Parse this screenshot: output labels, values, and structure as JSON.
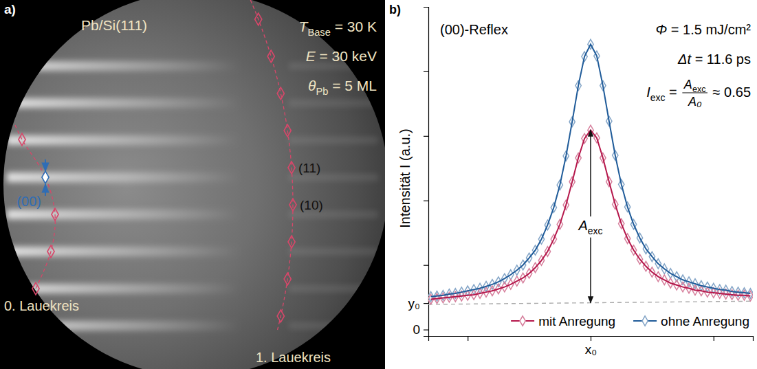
{
  "panel_a": {
    "letter": "a)",
    "title": "Pb/Si(111)",
    "parameters": [
      {
        "symbol": "T",
        "sub": "Base",
        "text": " = 30 K"
      },
      {
        "symbol": "E",
        "text": " = 30 keV"
      },
      {
        "symbol": "θ",
        "sub": "Pb",
        "text": " = 5 ML"
      }
    ],
    "reflexes": [
      "(00)",
      "(11)",
      "(10)"
    ],
    "laue_circles": [
      "0. Lauekreis",
      "1. Lauekreis"
    ]
  },
  "chart_data": {
    "type": "line",
    "letter": "b)",
    "title": "(00)-Reflex",
    "ylabel": "Intensität I (a.u.)",
    "x": [
      -1.3,
      -1.25,
      -1.2,
      -1.15,
      -1.1,
      -1.05,
      -1,
      -0.95,
      -0.9,
      -0.85,
      -0.8,
      -0.75,
      -0.7,
      -0.65,
      -0.6,
      -0.55,
      -0.5,
      -0.45,
      -0.4,
      -0.35,
      -0.3,
      -0.25,
      -0.2,
      -0.15,
      -0.1,
      -0.05,
      0,
      0.05,
      0.1,
      0.15,
      0.2,
      0.25,
      0.3,
      0.35,
      0.4,
      0.45,
      0.5,
      0.55,
      0.6,
      0.65,
      0.7,
      0.75,
      0.8,
      0.85,
      0.9,
      0.95,
      1,
      1.05,
      1.1,
      1.15,
      1.2,
      1.25,
      1.3
    ],
    "xlim": [
      -1.32,
      1.32
    ],
    "xticks": [
      {
        "value": -1,
        "label": null
      },
      {
        "value": 0,
        "label": "x₀"
      },
      {
        "value": 1,
        "label": null
      }
    ],
    "ylim": [
      -0.1,
      5
    ],
    "yticks": [
      0,
      {
        "value": 0.41,
        "label": "y₀"
      },
      {
        "value": 1,
        "label": null
      },
      {
        "value": 2,
        "label": null
      },
      {
        "value": 3,
        "label": null
      },
      {
        "value": 4,
        "label": null
      }
    ],
    "legend": "lower right",
    "series": [
      {
        "name": "mit Anregung",
        "color": "#b5174b",
        "marker": "diamond",
        "line_style": "solid",
        "values": [
          0.47,
          0.48,
          0.49,
          0.5,
          0.51,
          0.52,
          0.53,
          0.54,
          0.56,
          0.58,
          0.6,
          0.63,
          0.66,
          0.7,
          0.75,
          0.8,
          0.87,
          0.96,
          1.07,
          1.21,
          1.4,
          1.63,
          1.93,
          2.29,
          2.66,
          2.96,
          3.09,
          2.97,
          2.66,
          2.29,
          1.94,
          1.64,
          1.41,
          1.23,
          1.09,
          0.98,
          0.89,
          0.82,
          0.77,
          0.72,
          0.69,
          0.66,
          0.64,
          0.61,
          0.6,
          0.58,
          0.57,
          0.56,
          0.55,
          0.54,
          0.53,
          0.53,
          0.52
        ]
      },
      {
        "name": "ohne Anregung",
        "color": "#1f5b99",
        "marker": "diamond",
        "line_style": "solid",
        "values": [
          0.51,
          0.52,
          0.53,
          0.55,
          0.56,
          0.58,
          0.6,
          0.62,
          0.64,
          0.67,
          0.7,
          0.74,
          0.79,
          0.85,
          0.92,
          1.0,
          1.11,
          1.23,
          1.4,
          1.62,
          1.89,
          2.24,
          2.69,
          3.22,
          3.78,
          4.23,
          4.42,
          4.24,
          3.78,
          3.23,
          2.7,
          2.25,
          1.9,
          1.63,
          1.42,
          1.25,
          1.13,
          1.02,
          0.94,
          0.87,
          0.82,
          0.77,
          0.74,
          0.71,
          0.68,
          0.66,
          0.64,
          0.62,
          0.61,
          0.59,
          0.58,
          0.57,
          0.56
        ]
      }
    ],
    "baseline": {
      "x": [
        -1.32,
        1.32
      ],
      "values": [
        0.39,
        0.44
      ],
      "line_style": "dashed"
    },
    "annotations": [
      {
        "symbol": "Φ",
        "text": " = 1.5 mJ/cm²"
      },
      {
        "symbol": "Δt",
        "text": " = 11.6 ps"
      }
    ],
    "ratio": {
      "symbol": "I",
      "sub": "exc",
      "eq": " = ",
      "numerator": "A",
      "numerator_sub": "exc",
      "denominator": "A₀",
      "result": " ≈ 0.65"
    },
    "amplitude": {
      "x": 0,
      "from": 0.415,
      "to": 3.09,
      "symbol": "A",
      "sub": "exc"
    }
  }
}
